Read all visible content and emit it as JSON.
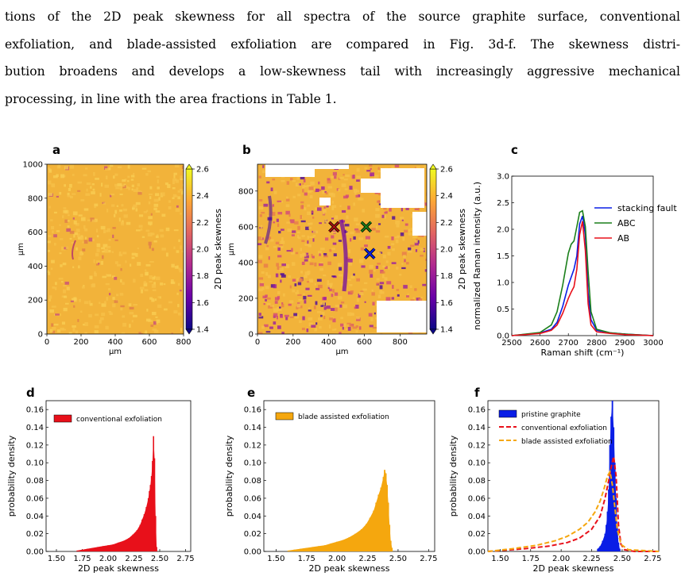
{
  "text": {
    "lines": [
      "tions of the 2D peak skewness for all spectra of the source graphite surface, conventional",
      "exfoliation, and blade-assisted exfoliation are compared in Fig. 3d-f. The skewness distri-",
      "bution broadens and develops a low-skewness tail with increasingly aggressive mechanical",
      "processing, in line with the area fractions in Table 1."
    ]
  },
  "panel_letters": [
    "a",
    "b",
    "c",
    "d",
    "e",
    "f"
  ],
  "colors": {
    "map_bg": "#f2b33a",
    "red": "#e8101a",
    "orange": "#f5a70e",
    "blue": "#0a1ee6",
    "green": "#1a7f1a",
    "dark_red": "#a81010"
  },
  "chart_data": [
    {
      "id": "a",
      "type": "heatmap",
      "xlabel": "μm",
      "ylabel": "μm",
      "xticks": [
        "0",
        "200",
        "400",
        "600",
        "800"
      ],
      "yticks": [
        "0",
        "200",
        "400",
        "600",
        "800",
        "1000"
      ],
      "colorbar_label": "2D peak skewness",
      "colorbar_ticks": [
        "1.4",
        "1.6",
        "1.8",
        "2.0",
        "2.2",
        "2.4",
        "2.6"
      ]
    },
    {
      "id": "b",
      "type": "heatmap",
      "xlabel": "μm",
      "ylabel": "μm",
      "xticks": [
        "0",
        "200",
        "400",
        "600",
        "800"
      ],
      "yticks": [
        "0",
        "200",
        "400",
        "600",
        "800"
      ],
      "colorbar_label": "2D peak skewness",
      "colorbar_ticks": [
        "1.4",
        "1.6",
        "1.8",
        "2.0",
        "2.2",
        "2.4",
        "2.6"
      ],
      "markers": [
        {
          "x": 430,
          "y": 600,
          "color": "dark_red"
        },
        {
          "x": 610,
          "y": 600,
          "color": "green"
        },
        {
          "x": 630,
          "y": 450,
          "color": "blue"
        }
      ]
    },
    {
      "id": "c",
      "type": "line",
      "xlabel": "Raman shift (cm⁻¹)",
      "ylabel": "normalized Raman intensity (a.u.)",
      "xlim": [
        2500,
        3000
      ],
      "ylim": [
        0,
        3.0
      ],
      "xticks": [
        "2500",
        "2600",
        "2700",
        "2800",
        "2900",
        "3000"
      ],
      "yticks": [
        "0.0",
        "0.5",
        "1.0",
        "1.5",
        "2.0",
        "2.5",
        "3.0"
      ],
      "series": [
        {
          "name": "stacking fault",
          "color": "blue",
          "x": [
            2500,
            2600,
            2640,
            2660,
            2680,
            2700,
            2720,
            2730,
            2740,
            2750,
            2760,
            2770,
            2780,
            2800,
            2850,
            2900,
            3000
          ],
          "y": [
            0.0,
            0.05,
            0.12,
            0.25,
            0.55,
            0.95,
            1.25,
            1.5,
            2.1,
            2.25,
            1.9,
            0.8,
            0.3,
            0.1,
            0.05,
            0.03,
            0.0
          ]
        },
        {
          "name": "ABC",
          "color": "green",
          "x": [
            2500,
            2600,
            2640,
            2660,
            2680,
            2700,
            2710,
            2720,
            2730,
            2740,
            2750,
            2760,
            2770,
            2780,
            2800,
            2850,
            2900,
            3000
          ],
          "y": [
            0.0,
            0.06,
            0.2,
            0.45,
            0.95,
            1.55,
            1.72,
            1.78,
            2.05,
            2.32,
            2.35,
            2.05,
            1.2,
            0.45,
            0.12,
            0.05,
            0.03,
            0.0
          ]
        },
        {
          "name": "AB",
          "color": "red",
          "x": [
            2500,
            2600,
            2640,
            2660,
            2680,
            2700,
            2710,
            2720,
            2730,
            2740,
            2750,
            2760,
            2770,
            2780,
            2800,
            2850,
            2900,
            3000
          ],
          "y": [
            0.0,
            0.04,
            0.1,
            0.2,
            0.42,
            0.7,
            0.82,
            0.92,
            1.25,
            1.9,
            2.15,
            1.6,
            0.6,
            0.2,
            0.07,
            0.04,
            0.02,
            0.0
          ]
        }
      ]
    },
    {
      "id": "d",
      "type": "bar",
      "xlabel": "2D peak skewness",
      "ylabel": "probability density",
      "xlim": [
        1.4,
        2.8
      ],
      "ylim": [
        0,
        0.17
      ],
      "xticks": [
        "1.50",
        "1.75",
        "2.00",
        "2.25",
        "2.50",
        "2.75"
      ],
      "yticks": [
        "0.00",
        "0.02",
        "0.04",
        "0.06",
        "0.08",
        "0.10",
        "0.12",
        "0.14",
        "0.16"
      ],
      "series": [
        {
          "name": "conventional exfoliation",
          "color": "red",
          "style": "bar",
          "x": [
            1.7,
            1.75,
            1.8,
            1.85,
            1.9,
            1.95,
            2.0,
            2.05,
            2.1,
            2.15,
            2.2,
            2.24,
            2.28,
            2.31,
            2.33,
            2.35,
            2.37,
            2.39,
            2.4,
            2.41,
            2.42,
            2.43,
            2.44,
            2.45,
            2.46,
            2.47
          ],
          "y": [
            0.001,
            0.002,
            0.003,
            0.004,
            0.005,
            0.006,
            0.007,
            0.008,
            0.01,
            0.012,
            0.015,
            0.019,
            0.024,
            0.03,
            0.036,
            0.042,
            0.05,
            0.06,
            0.068,
            0.075,
            0.085,
            0.102,
            0.13,
            0.105,
            0.04,
            0.005
          ]
        }
      ]
    },
    {
      "id": "e",
      "type": "bar",
      "xlabel": "2D peak skewness",
      "ylabel": "probability density",
      "xlim": [
        1.4,
        2.8
      ],
      "ylim": [
        0,
        0.17
      ],
      "xticks": [
        "1.50",
        "1.75",
        "2.00",
        "2.25",
        "2.50",
        "2.75"
      ],
      "yticks": [
        "0.00",
        "0.02",
        "0.04",
        "0.06",
        "0.08",
        "0.10",
        "0.12",
        "0.14",
        "0.16"
      ],
      "series": [
        {
          "name": "blade assisted exfoliation",
          "color": "orange",
          "style": "bar",
          "x": [
            1.6,
            1.65,
            1.7,
            1.75,
            1.8,
            1.85,
            1.9,
            1.95,
            2.0,
            2.05,
            2.1,
            2.15,
            2.2,
            2.24,
            2.27,
            2.3,
            2.32,
            2.34,
            2.36,
            2.38,
            2.39,
            2.4,
            2.41,
            2.42,
            2.43,
            2.44,
            2.45
          ],
          "y": [
            0.001,
            0.002,
            0.003,
            0.004,
            0.005,
            0.006,
            0.007,
            0.009,
            0.011,
            0.013,
            0.016,
            0.02,
            0.025,
            0.031,
            0.038,
            0.046,
            0.055,
            0.064,
            0.072,
            0.084,
            0.092,
            0.088,
            0.075,
            0.055,
            0.03,
            0.012,
            0.004
          ]
        }
      ]
    },
    {
      "id": "f",
      "type": "bar",
      "xlabel": "2D peak skewness",
      "ylabel": "probability density",
      "xlim": [
        1.4,
        2.8
      ],
      "ylim": [
        0,
        0.17
      ],
      "xticks": [
        "1.50",
        "1.75",
        "2.00",
        "2.25",
        "2.50",
        "2.75"
      ],
      "yticks": [
        "0.00",
        "0.02",
        "0.04",
        "0.06",
        "0.08",
        "0.10",
        "0.12",
        "0.14",
        "0.16"
      ],
      "series": [
        {
          "name": "pristine graphite",
          "color": "blue",
          "style": "bar",
          "x": [
            2.3,
            2.32,
            2.34,
            2.36,
            2.37,
            2.38,
            2.39,
            2.4,
            2.41,
            2.42,
            2.43,
            2.44,
            2.45,
            2.46,
            2.47,
            2.48
          ],
          "y": [
            0.003,
            0.006,
            0.012,
            0.02,
            0.03,
            0.045,
            0.07,
            0.12,
            0.152,
            0.17,
            0.14,
            0.1,
            0.06,
            0.028,
            0.01,
            0.003
          ]
        },
        {
          "name": "conventional exfoliation",
          "color": "red",
          "style": "dashed",
          "x": [
            1.4,
            1.7,
            1.9,
            2.05,
            2.15,
            2.25,
            2.32,
            2.36,
            2.39,
            2.41,
            2.43,
            2.45,
            2.47,
            2.49,
            2.52,
            2.6,
            2.8
          ],
          "y": [
            0.0,
            0.003,
            0.006,
            0.01,
            0.015,
            0.025,
            0.04,
            0.06,
            0.08,
            0.095,
            0.107,
            0.085,
            0.03,
            0.008,
            0.002,
            0.0,
            0.0
          ]
        },
        {
          "name": "blade assisted exfoliation",
          "color": "orange",
          "style": "dashed",
          "x": [
            1.4,
            1.6,
            1.8,
            1.95,
            2.05,
            2.15,
            2.22,
            2.28,
            2.32,
            2.35,
            2.38,
            2.4,
            2.42,
            2.44,
            2.46,
            2.49,
            2.55,
            2.8
          ],
          "y": [
            0.0,
            0.003,
            0.007,
            0.012,
            0.017,
            0.025,
            0.033,
            0.045,
            0.057,
            0.07,
            0.085,
            0.09,
            0.075,
            0.05,
            0.025,
            0.008,
            0.002,
            0.0
          ]
        }
      ]
    }
  ]
}
